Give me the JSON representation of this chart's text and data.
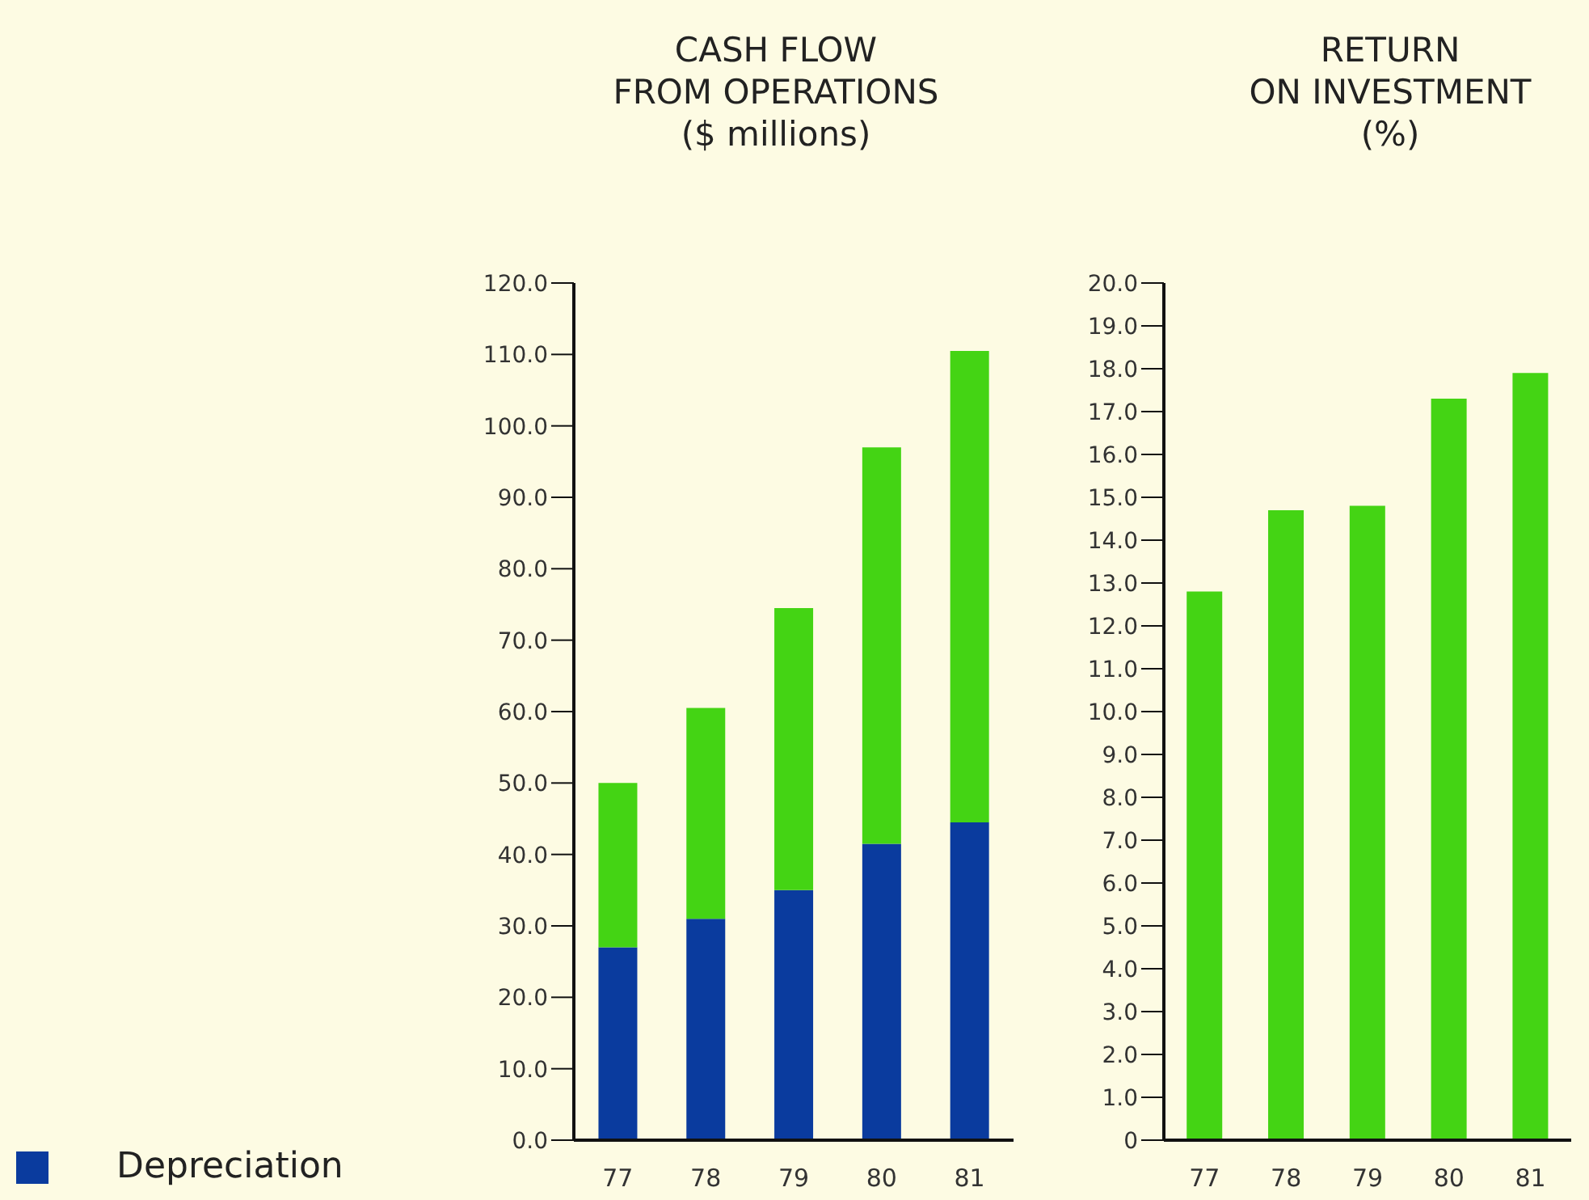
{
  "chart_data": [
    {
      "type": "bar",
      "title": "CASH FLOW\nFROM OPERATIONS\n($ millions)",
      "categories": [
        "77",
        "78",
        "79",
        "80",
        "81"
      ],
      "stacked": true,
      "legend": "bottom left",
      "series": [
        {
          "name": "Depreciation",
          "color": "#0a3b9e",
          "values": [
            27,
            31,
            35,
            41.5,
            44.5
          ]
        },
        {
          "color": "#44d414",
          "values": [
            23,
            29.5,
            39.5,
            55.5,
            66
          ]
        }
      ],
      "ylim": [
        0,
        120
      ],
      "yticks": [
        {
          "value": 0,
          "label": "0.0"
        },
        {
          "value": 10,
          "label": "10.0"
        },
        {
          "value": 20,
          "label": "20.0"
        },
        {
          "value": 30,
          "label": "30.0"
        },
        {
          "value": 40,
          "label": "40.0"
        },
        {
          "value": 50,
          "label": "50.0"
        },
        {
          "value": 60,
          "label": "60.0"
        },
        {
          "value": 70,
          "label": "70.0"
        },
        {
          "value": 80,
          "label": "80.0"
        },
        {
          "value": 90,
          "label": "90.0"
        },
        {
          "value": 100,
          "label": "100.0"
        },
        {
          "value": 110,
          "label": "110.0"
        },
        {
          "value": 120,
          "label": "120.0"
        }
      ]
    },
    {
      "type": "bar",
      "title": "RETURN\nON INVESTMENT\n(%)",
      "categories": [
        "77",
        "78",
        "79",
        "80",
        "81"
      ],
      "series": [
        {
          "color": "#44d414",
          "values": [
            12.8,
            14.7,
            14.8,
            17.3,
            17.9
          ]
        }
      ],
      "ylim": [
        0,
        20
      ],
      "yticks": [
        0,
        {
          "value": 1,
          "label": "1.0"
        },
        {
          "value": 2,
          "label": "2.0"
        },
        {
          "value": 3,
          "label": "3.0"
        },
        {
          "value": 4,
          "label": "4.0"
        },
        {
          "value": 5,
          "label": "5.0"
        },
        {
          "value": 6,
          "label": "6.0"
        },
        {
          "value": 7,
          "label": "7.0"
        },
        {
          "value": 8,
          "label": "8.0"
        },
        {
          "value": 9,
          "label": "9.0"
        },
        {
          "value": 10,
          "label": "10.0"
        },
        {
          "value": 11,
          "label": "11.0"
        },
        {
          "value": 12,
          "label": "12.0"
        },
        {
          "value": 13,
          "label": "13.0"
        },
        {
          "value": 14,
          "label": "14.0"
        },
        {
          "value": 15,
          "label": "15.0"
        },
        {
          "value": 16,
          "label": "16.0"
        },
        {
          "value": 17,
          "label": "17.0"
        },
        {
          "value": 18,
          "label": "18.0"
        },
        {
          "value": 19,
          "label": "19.0"
        },
        {
          "value": 20,
          "label": "20.0"
        }
      ]
    }
  ]
}
